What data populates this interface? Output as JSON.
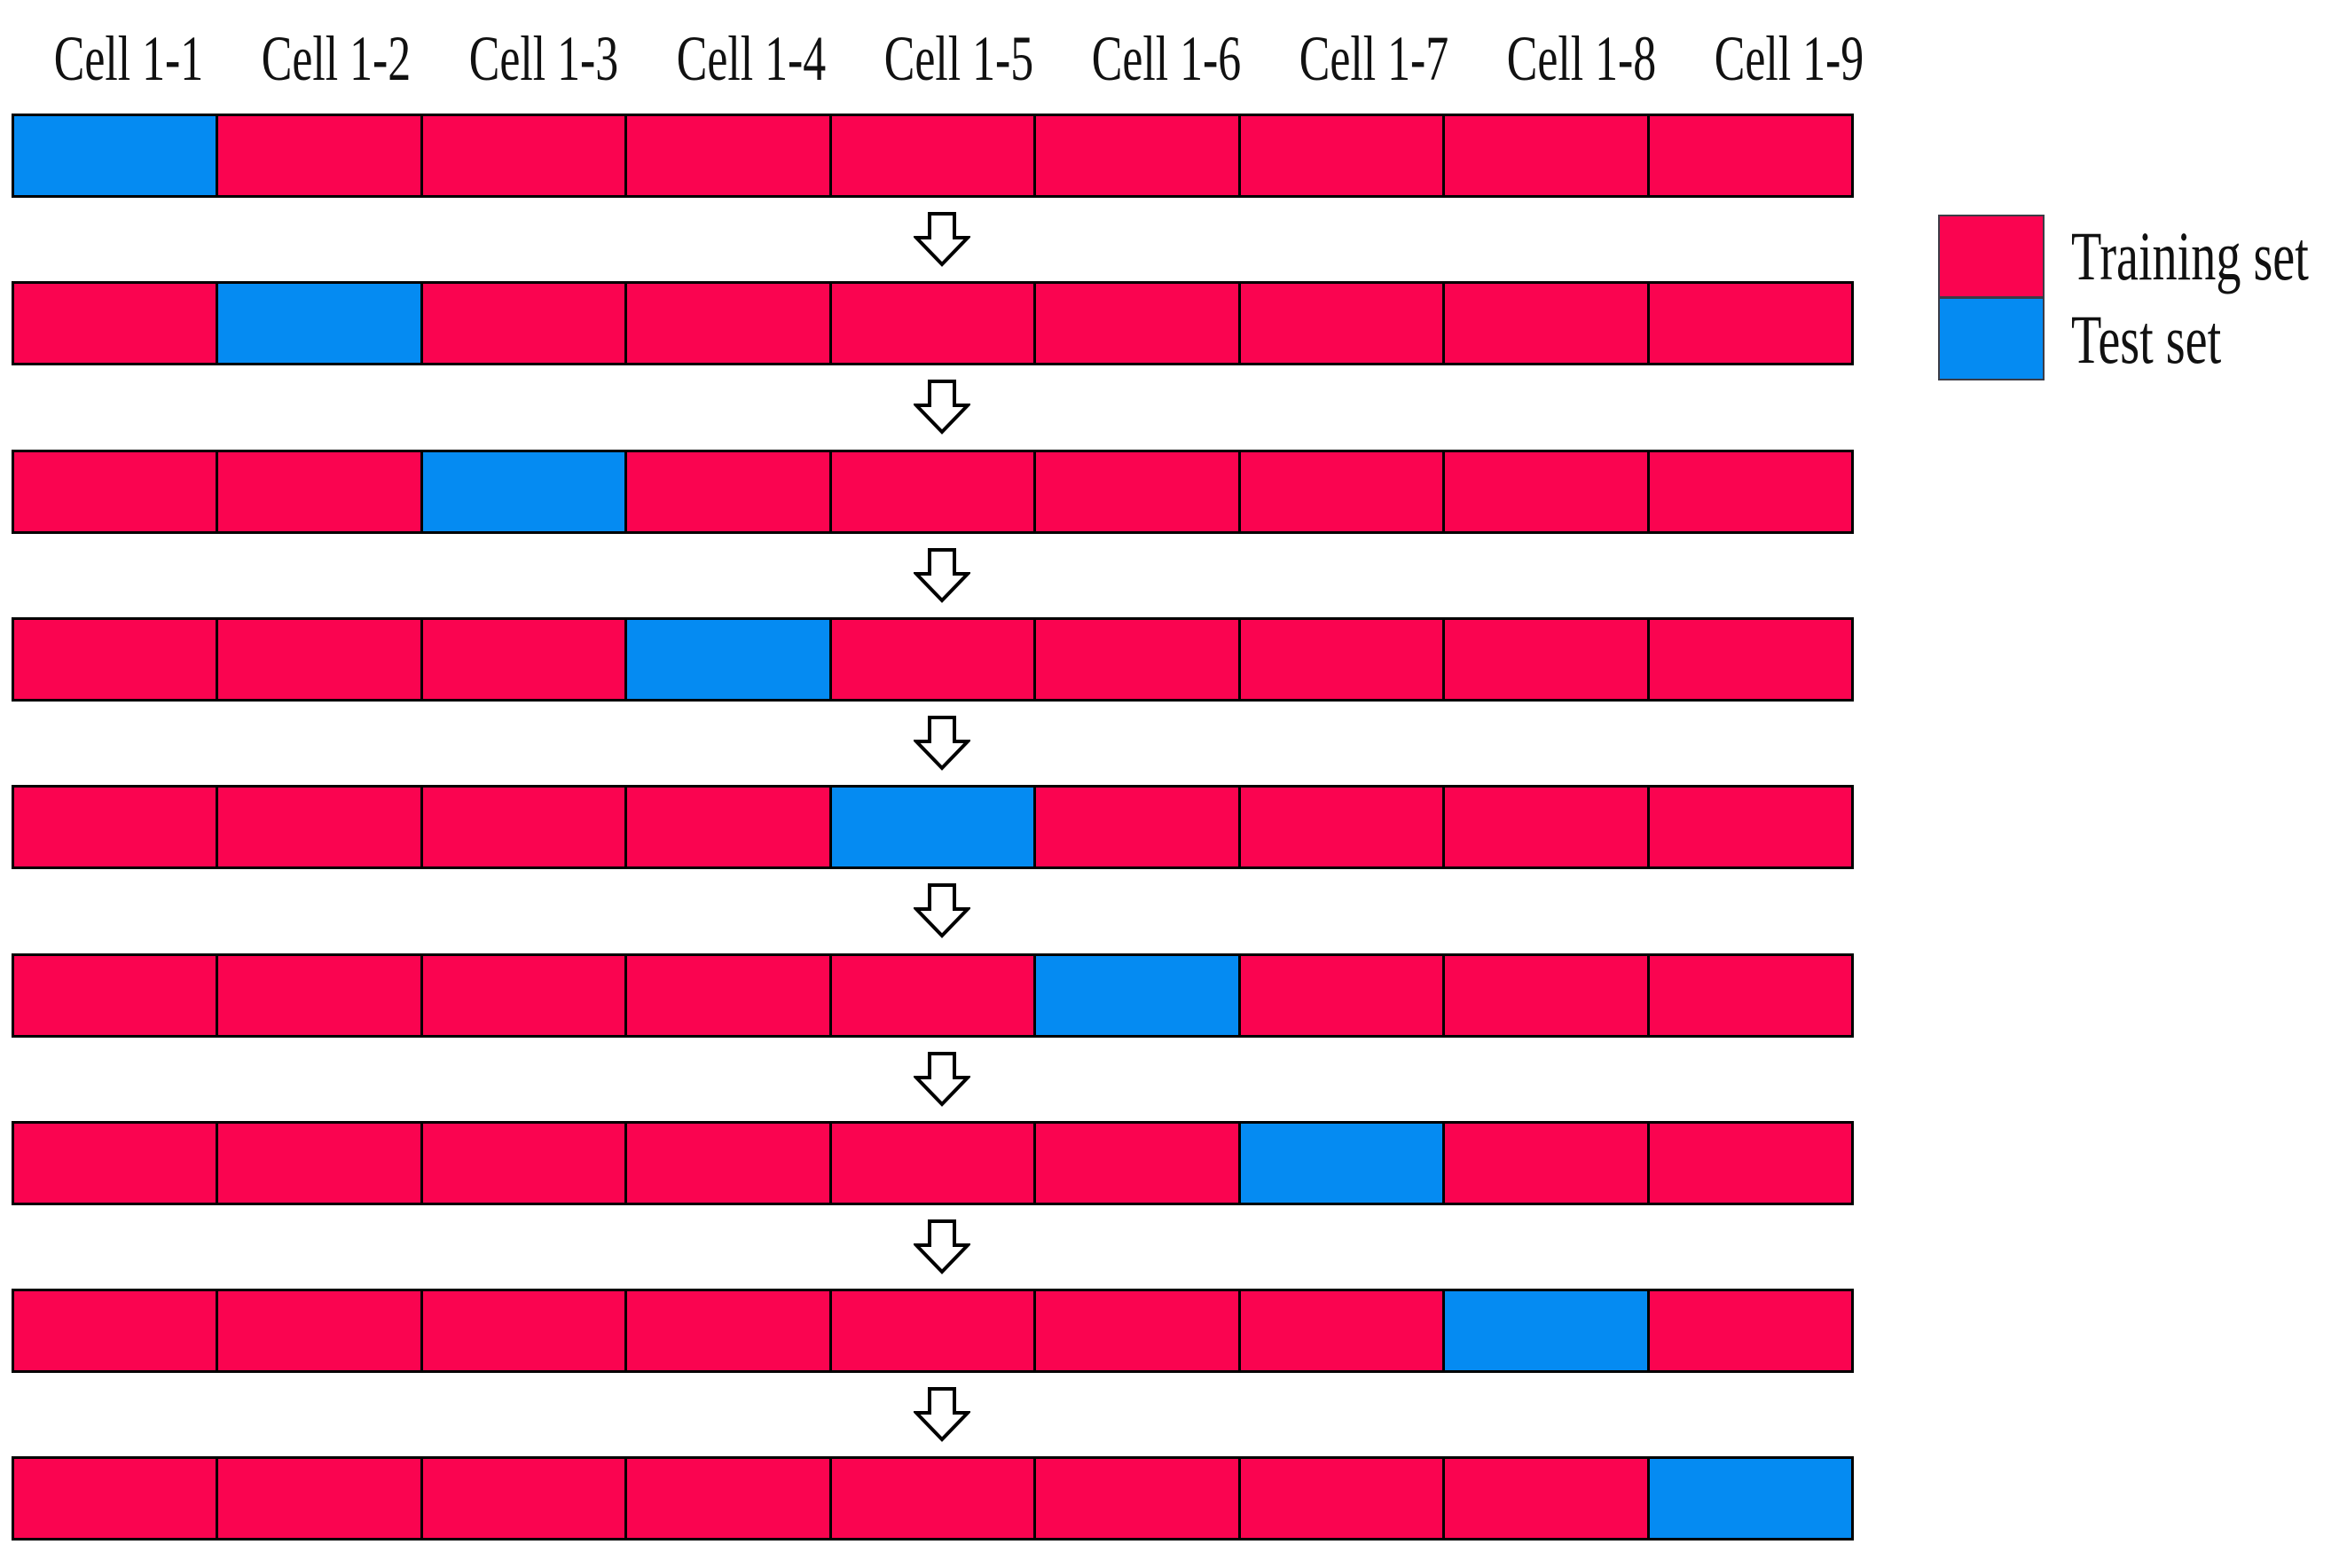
{
  "figure": {
    "columns": [
      "Cell 1-1",
      "Cell 1-2",
      "Cell 1-3",
      "Cell 1-4",
      "Cell 1-5",
      "Cell 1-6",
      "Cell 1-7",
      "Cell 1-8",
      "Cell 1-9"
    ],
    "cells_per_row": 9,
    "folds": [
      {
        "fold": 1,
        "test_index": 0,
        "test_cell": "Cell 1-1"
      },
      {
        "fold": 2,
        "test_index": 1,
        "test_cell": "Cell 1-2"
      },
      {
        "fold": 3,
        "test_index": 2,
        "test_cell": "Cell 1-3"
      },
      {
        "fold": 4,
        "test_index": 3,
        "test_cell": "Cell 1-4"
      },
      {
        "fold": 5,
        "test_index": 4,
        "test_cell": "Cell 1-5"
      },
      {
        "fold": 6,
        "test_index": 5,
        "test_cell": "Cell 1-6"
      },
      {
        "fold": 7,
        "test_index": 6,
        "test_cell": "Cell 1-7"
      },
      {
        "fold": 8,
        "test_index": 7,
        "test_cell": "Cell 1-8"
      },
      {
        "fold": 9,
        "test_index": 8,
        "test_cell": "Cell 1-9"
      }
    ],
    "arrow_icon": "down-block-arrow"
  },
  "legend": {
    "items": [
      {
        "label": "Training set",
        "type": "training"
      },
      {
        "label": "Test set",
        "type": "test"
      }
    ]
  },
  "colors": {
    "training": "#FA0450",
    "test": "#058BF2",
    "cell_border": "#000000",
    "arrow_fill": "#FFFFFF",
    "arrow_stroke": "#000000",
    "text": "#111111"
  }
}
